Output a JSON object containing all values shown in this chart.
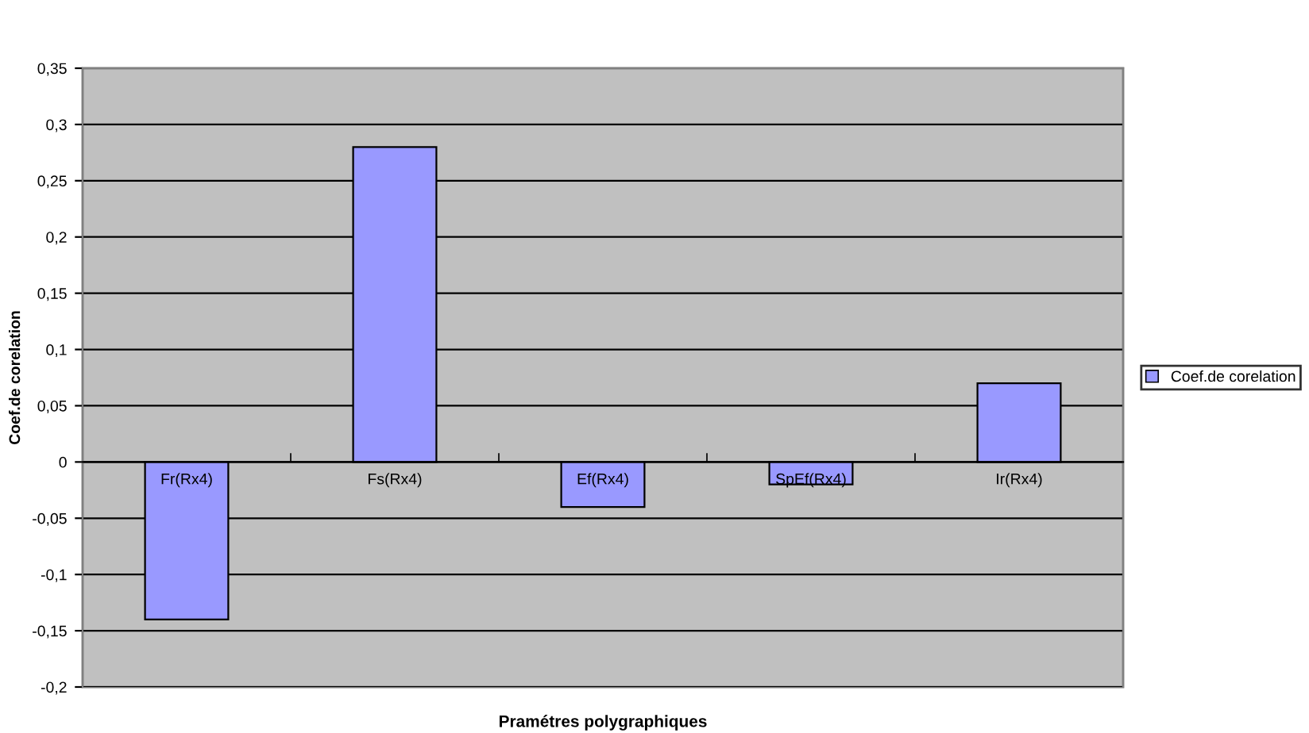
{
  "chart_data": {
    "type": "bar",
    "xlabel": "Pramétres polygraphiques",
    "ylabel": "Coef.de corelation",
    "categories": [
      "Fr(Rx4)",
      "Fs(Rx4)",
      "Ef(Rx4)",
      "SpEf(Rx4)",
      "Ir(Rx4)"
    ],
    "series": [
      {
        "name": "Coef.de corelation",
        "color": "#9999ff",
        "values": [
          -0.14,
          0.28,
          -0.04,
          -0.02,
          0.07
        ]
      }
    ],
    "ylim": [
      -0.2,
      0.35
    ],
    "yticks": [
      {
        "value": -0.2,
        "label": "-0,2"
      },
      {
        "value": -0.15,
        "label": "-0,15"
      },
      {
        "value": -0.1,
        "label": "-0,1"
      },
      {
        "value": -0.05,
        "label": "-0,05"
      },
      0,
      {
        "value": 0.05,
        "label": "0,05"
      },
      {
        "value": 0.1,
        "label": "0,1"
      },
      {
        "value": 0.15,
        "label": "0,15"
      },
      {
        "value": 0.2,
        "label": "0,2"
      },
      {
        "value": 0.25,
        "label": "0,25"
      },
      {
        "value": 0.3,
        "label": "0,3"
      },
      {
        "value": 0.35,
        "label": "0,35"
      }
    ],
    "grid": "y",
    "legend": "right"
  }
}
